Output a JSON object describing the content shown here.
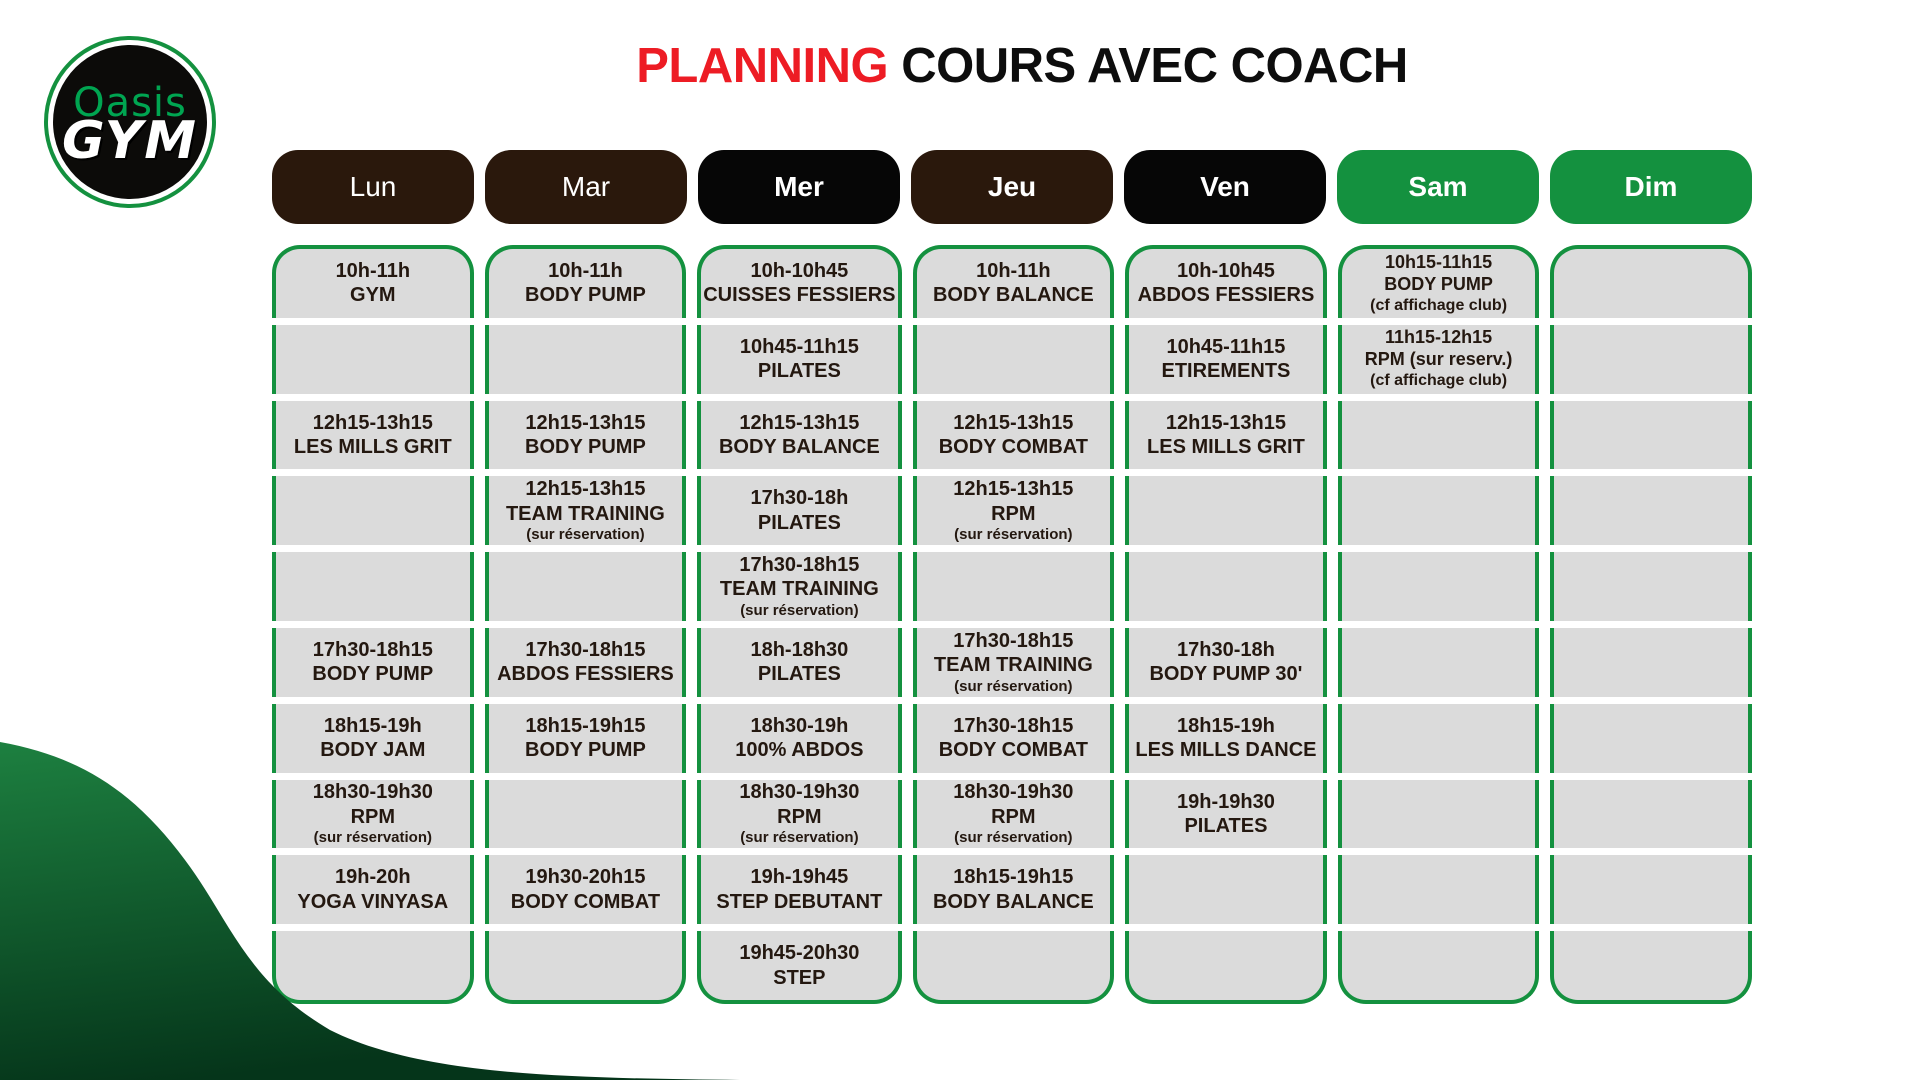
{
  "logo": {
    "top": "Oasis",
    "bottom": "GYM"
  },
  "title": {
    "highlight": "PLANNING",
    "rest": " COURS AVEC COACH"
  },
  "colors": {
    "green": "#14913f",
    "dark_brown": "#2a180c",
    "black": "#060606",
    "cell_gray": "#dbdbdb",
    "text": "#241810",
    "title_red": "#ed1c24",
    "wave_top": "#1d8040",
    "wave_bottom": "#05351a"
  },
  "days": [
    {
      "label": "Lun",
      "header_bg": "#2a180c",
      "bold": false,
      "cells": [
        {
          "time": "10h-11h",
          "name": "GYM"
        },
        null,
        {
          "time": "12h15-13h15",
          "name": "LES MILLS GRIT"
        },
        null,
        null,
        {
          "time": "17h30-18h15",
          "name": "BODY PUMP"
        },
        {
          "time": "18h15-19h",
          "name": "BODY JAM"
        },
        {
          "time": "18h30-19h30",
          "name": "RPM",
          "note": "(sur réservation)"
        },
        {
          "time": "19h-20h",
          "name": "YOGA VINYASA"
        },
        null
      ]
    },
    {
      "label": "Mar",
      "header_bg": "#2a180c",
      "bold": false,
      "cells": [
        {
          "time": "10h-11h",
          "name": "BODY PUMP"
        },
        null,
        {
          "time": "12h15-13h15",
          "name": "BODY PUMP"
        },
        {
          "time": "12h15-13h15",
          "name": "TEAM TRAINING",
          "note": "(sur réservation)"
        },
        null,
        {
          "time": "17h30-18h15",
          "name": "ABDOS FESSIERS"
        },
        {
          "time": "18h15-19h15",
          "name": "BODY PUMP"
        },
        null,
        {
          "time": "19h30-20h15",
          "name": "BODY COMBAT"
        },
        null
      ]
    },
    {
      "label": "Mer",
      "header_bg": "#060606",
      "bold": true,
      "cells": [
        {
          "time": "10h-10h45",
          "name": "CUISSES FESSIERS"
        },
        {
          "time": "10h45-11h15",
          "name": "PILATES"
        },
        {
          "time": "12h15-13h15",
          "name": "BODY BALANCE"
        },
        {
          "time": "17h30-18h",
          "name": "PILATES"
        },
        {
          "time": "17h30-18h15",
          "name": "TEAM TRAINING",
          "note": "(sur réservation)"
        },
        {
          "time": "18h-18h30",
          "name": "PILATES"
        },
        {
          "time": "18h30-19h",
          "name": "100% ABDOS"
        },
        {
          "time": "18h30-19h30",
          "name": "RPM",
          "note": "(sur réservation)"
        },
        {
          "time": "19h-19h45",
          "name": "STEP DEBUTANT"
        },
        {
          "time": "19h45-20h30",
          "name": "STEP"
        }
      ]
    },
    {
      "label": "Jeu",
      "header_bg": "#2a180c",
      "bold": true,
      "cells": [
        {
          "time": "10h-11h",
          "name": "BODY BALANCE"
        },
        null,
        {
          "time": "12h15-13h15",
          "name": "BODY COMBAT"
        },
        {
          "time": "12h15-13h15",
          "name": "RPM",
          "note": "(sur réservation)"
        },
        null,
        {
          "time": "17h30-18h15",
          "name": "TEAM TRAINING",
          "note": "(sur réservation)"
        },
        {
          "time": "17h30-18h15",
          "name": "BODY COMBAT"
        },
        {
          "time": "18h30-19h30",
          "name": "RPM",
          "note": "(sur réservation)"
        },
        {
          "time": "18h15-19h15",
          "name": "BODY BALANCE"
        },
        null
      ]
    },
    {
      "label": "Ven",
      "header_bg": "#060606",
      "bold": true,
      "cells": [
        {
          "time": "10h-10h45",
          "name": "ABDOS FESSIERS"
        },
        {
          "time": "10h45-11h15",
          "name": "ETIREMENTS"
        },
        {
          "time": "12h15-13h15",
          "name": "LES MILLS GRIT"
        },
        null,
        null,
        {
          "time": "17h30-18h",
          "name": "BODY PUMP 30'"
        },
        {
          "time": "18h15-19h",
          "name": "LES MILLS DANCE"
        },
        {
          "time": "19h-19h30",
          "name": "PILATES"
        },
        null,
        null
      ]
    },
    {
      "label": "Sam",
      "header_bg": "#14913f",
      "bold": true,
      "cells": [
        {
          "time": "10h15-11h15",
          "name": "BODY PUMP",
          "note": "(cf affichage club)",
          "compact": true
        },
        {
          "time": "11h15-12h15",
          "name": "RPM (sur reserv.)",
          "note": "(cf affichage club)",
          "compact": true
        },
        null,
        null,
        null,
        null,
        null,
        null,
        null,
        null
      ]
    },
    {
      "label": "Dim",
      "header_bg": "#14913f",
      "bold": true,
      "cells": [
        null,
        null,
        null,
        null,
        null,
        null,
        null,
        null,
        null,
        null
      ]
    }
  ]
}
